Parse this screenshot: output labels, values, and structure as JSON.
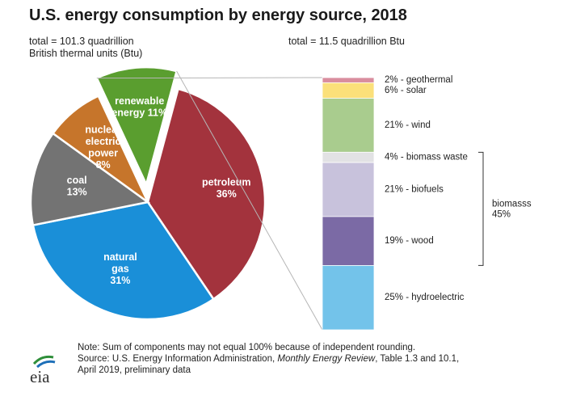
{
  "header": {
    "title": "U.S. energy consumption by energy source, 2018",
    "total_left_line1": "total = 101.3 quadrillion",
    "total_left_line2": "British thermal units (Btu)",
    "total_right": "total = 11.5 quadrillion Btu"
  },
  "colors": {
    "petroleum": "#a3333d",
    "natural_gas": "#1a8fd8",
    "coal": "#737373",
    "nuclear": "#c6752b",
    "renewable": "#5a9e2f",
    "geothermal": "#d98d9e",
    "solar": "#fbe07a",
    "wind": "#a9cc8e",
    "biomass_waste": "#e2e2e4",
    "biofuels": "#c8c2dc",
    "wood": "#7b6aa5",
    "hydroelectric": "#73c3ea"
  },
  "chart_data": [
    {
      "type": "pie",
      "labels": [
        "petroleum",
        "natural gas",
        "coal",
        "nuclear electric power",
        "renewable energy"
      ],
      "label_lines": [
        [
          "petroleum"
        ],
        [
          "natural",
          "gas"
        ],
        [
          "coal"
        ],
        [
          "nuclear",
          "electric",
          "power"
        ],
        [
          "renewable",
          "energy 11%"
        ]
      ],
      "values": [
        36,
        31,
        13,
        8,
        11
      ],
      "value_labels": [
        "36%",
        "31%",
        "13%",
        "8%",
        ""
      ]
    },
    {
      "type": "bar",
      "stacked": true,
      "categories": [
        "geothermal",
        "solar",
        "wind",
        "biomass waste",
        "biofuels",
        "wood",
        "hydroelectric"
      ],
      "values": [
        2,
        6,
        21,
        4,
        21,
        19,
        25
      ],
      "labels": [
        "2% - geothermal",
        "6% - solar",
        "21% - wind",
        "4% - biomass waste",
        "21% - biofuels",
        "19% - wood",
        "25% - hydroelectric"
      ],
      "group_label": [
        "biomasss",
        "45%"
      ]
    }
  ],
  "footer": {
    "logo_text": "eia",
    "note": "Note: Sum of components may not equal 100% because of independent rounding.",
    "source_prefix": "Source: U.S. Energy Information Administration, ",
    "source_italic": "Monthly Energy Review",
    "source_suffix": ", Table 1.3 and 10.1,",
    "source_line2": "April 2019, preliminary data"
  }
}
